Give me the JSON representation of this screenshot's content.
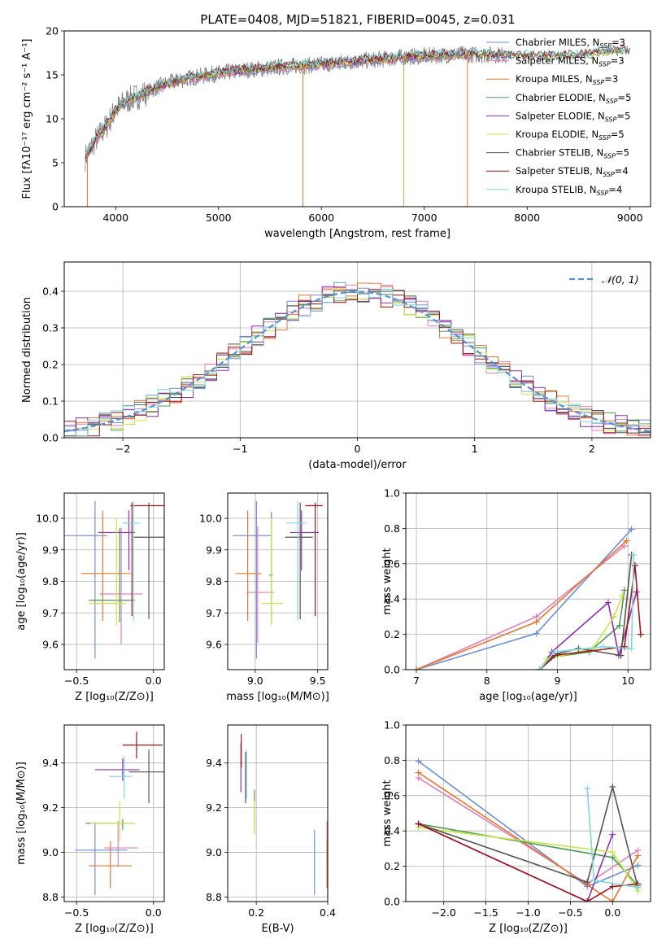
{
  "figure": {
    "title": "PLATE=0408, MJD=51821, FIBERID=0045, z=0.031"
  },
  "colors": {
    "Chabrier MILES": "#6a8fd8",
    "Salpeter MILES": "#e37fb8",
    "Kroupa MILES": "#e8772e",
    "Chabrier ELODIE": "#4d9c52",
    "Salpeter ELODIE": "#8e2db5",
    "Kroupa ELODIE": "#c9e64d",
    "Chabrier STELIB": "#555555",
    "Salpeter STELIB": "#a01616",
    "Kroupa STELIB": "#7fd6e0",
    "data": "#7f7f7f",
    "normal_curve": "#5b8fd4"
  },
  "chart_data": [
    {
      "id": "spectrum",
      "type": "line",
      "title": "PLATE=0408, MJD=51821, FIBERID=0045, z=0.031",
      "xlabel": "wavelength [Angstrom, rest frame]",
      "ylabel": "Flux [fλ10⁻¹⁷ erg cm⁻² s⁻¹ A⁻¹]",
      "xlim": [
        3500,
        9200
      ],
      "ylim": [
        0,
        20
      ],
      "xticks": [
        "4000",
        "5000",
        "6000",
        "7000",
        "8000",
        "9000"
      ],
      "yticks": [
        "0",
        "5",
        "10",
        "15",
        "20"
      ],
      "legend_position": "upper-right",
      "legend": [
        {
          "label": "Chabrier MILES, N",
          "sub": "SSP",
          "tail": "=3"
        },
        {
          "label": "Salpeter MILES, N",
          "sub": "SSP",
          "tail": "=3"
        },
        {
          "label": "Kroupa MILES, N",
          "sub": "SSP",
          "tail": "=3"
        },
        {
          "label": "Chabrier ELODIE, N",
          "sub": "SSP",
          "tail": "=5"
        },
        {
          "label": "Salpeter ELODIE, N",
          "sub": "SSP",
          "tail": "=5"
        },
        {
          "label": "Kroupa ELODIE, N",
          "sub": "SSP",
          "tail": "=5"
        },
        {
          "label": "Chabrier STELIB, N",
          "sub": "SSP",
          "tail": "=5"
        },
        {
          "label": "Salpeter STELIB, N",
          "sub": "SSP",
          "tail": "=4"
        },
        {
          "label": "Kroupa STELIB, N",
          "sub": "SSP",
          "tail": "=4"
        }
      ],
      "continuum": {
        "x": [
          3700,
          3800,
          3900,
          4000,
          4100,
          4200,
          4300,
          4400,
          4500,
          4700,
          4900,
          5100,
          5300,
          5500,
          5700,
          5900,
          6100,
          6300,
          6500,
          6700,
          6900,
          7100,
          7300,
          7500,
          7700,
          7900,
          8100,
          8300,
          8500,
          8700,
          8900,
          9100
        ],
        "y": [
          5.5,
          7.5,
          9.0,
          11.0,
          12.0,
          12.5,
          13.0,
          13.6,
          14.0,
          14.6,
          15.0,
          15.3,
          15.6,
          15.8,
          16.0,
          16.1,
          16.3,
          16.5,
          16.7,
          16.9,
          17.1,
          17.2,
          17.3,
          17.3,
          17.3,
          17.2,
          17.1,
          17.1,
          17.2,
          17.5,
          17.7,
          17.8
        ]
      },
      "spikes_data": [
        {
          "x": 3725,
          "y": 0
        },
        {
          "x": 5820,
          "y": 0
        },
        {
          "x": 6800,
          "y": 0
        },
        {
          "x": 7420,
          "y": 0
        }
      ]
    },
    {
      "id": "residuals",
      "type": "histogram",
      "xlabel": "(data-model)/error",
      "ylabel": "Normed distribution",
      "xlim": [
        -2.5,
        2.5
      ],
      "ylim": [
        0,
        0.48
      ],
      "xticks": [
        "−2",
        "−1",
        "0",
        "1",
        "2"
      ],
      "yticks": [
        "0.0",
        "0.1",
        "0.2",
        "0.3",
        "0.4"
      ],
      "legend_position": "upper-right",
      "legend": [
        "𝒩(0, 1)"
      ],
      "bin_width": 0.1
    },
    {
      "id": "age-vs-Z",
      "type": "errorbar",
      "xlabel": "Z [log₁₀(Z/Z⊙)]",
      "ylabel": "age  [log₁₀(age/yr)]",
      "xlim": [
        -0.58,
        0.07
      ],
      "ylim": [
        9.52,
        10.08
      ],
      "xticks": [
        "−0.5",
        "0.0"
      ],
      "yticks": [
        "9.6",
        "9.7",
        "9.8",
        "9.9",
        "10.0"
      ],
      "series": [
        {
          "name": "Chabrier MILES",
          "x": -0.38,
          "xerr": [
            0.34,
            0.08
          ],
          "y": 9.945,
          "yerr": [
            0.39,
            0.11
          ]
        },
        {
          "name": "Salpeter MILES",
          "x": -0.21,
          "xerr": [
            0.14,
            0.14
          ],
          "y": 9.76,
          "yerr": [
            0.16,
            0.21
          ]
        },
        {
          "name": "Kroupa MILES",
          "x": -0.33,
          "xerr": [
            0.14,
            0.18
          ],
          "y": 9.825,
          "yerr": [
            0.15,
            0.2
          ]
        },
        {
          "name": "Chabrier ELODIE",
          "x": -0.22,
          "xerr": [
            0.2,
            0.1
          ],
          "y": 9.74,
          "yerr": [
            0.07,
            0.23
          ]
        },
        {
          "name": "Salpeter ELODIE",
          "x": -0.16,
          "xerr": [
            0.2,
            0.04
          ],
          "y": 9.955,
          "yerr": [
            0.12,
            0.07
          ]
        },
        {
          "name": "Kroupa ELODIE",
          "x": -0.24,
          "xerr": [
            0.18,
            0.06
          ],
          "y": 9.73,
          "yerr": [
            0.07,
            0.27
          ]
        },
        {
          "name": "Chabrier STELIB",
          "x": -0.03,
          "xerr": [
            0.1,
            0.11
          ],
          "y": 9.94,
          "yerr": [
            0.26,
            0.11
          ]
        },
        {
          "name": "Salpeter STELIB",
          "x": -0.14,
          "xerr": [
            0.01,
            0.21
          ],
          "y": 10.04,
          "yerr": [
            0.35,
            0.01
          ]
        },
        {
          "name": "Kroupa STELIB",
          "x": -0.13,
          "xerr": [
            0.07,
            0.04
          ],
          "y": 9.985,
          "yerr": [
            0.31,
            0.07
          ]
        }
      ]
    },
    {
      "id": "age-vs-mass",
      "type": "errorbar",
      "xlabel": "mass [log₁₀(M/M⊙)]",
      "xlim": [
        8.78,
        9.58
      ],
      "ylim": [
        9.52,
        10.08
      ],
      "xticks": [
        "9.0",
        "9.5"
      ],
      "yticks": [
        "9.6",
        "9.7",
        "9.8",
        "9.9",
        "10.0"
      ],
      "series": [
        {
          "name": "Chabrier MILES",
          "x": 9.01,
          "xerr": [
            0.19,
            0.12
          ],
          "y": 9.945,
          "yerr": [
            0.39,
            0.11
          ]
        },
        {
          "name": "Salpeter MILES",
          "x": 9.02,
          "xerr": [
            0.09,
            0.13
          ],
          "y": 9.765,
          "yerr": [
            0.16,
            0.21
          ]
        },
        {
          "name": "Kroupa MILES",
          "x": 8.94,
          "xerr": [
            0.1,
            0.11
          ],
          "y": 9.825,
          "yerr": [
            0.15,
            0.2
          ]
        },
        {
          "name": "Chabrier ELODIE",
          "x": 9.13,
          "xerr": [
            0.02,
            0.01
          ],
          "y": 9.82,
          "yerr": [
            0.15,
            0.2
          ]
        },
        {
          "name": "Salpeter ELODIE",
          "x": 9.37,
          "xerr": [
            0.09,
            0.14
          ],
          "y": 9.955,
          "yerr": [
            0.12,
            0.07
          ]
        },
        {
          "name": "Kroupa ELODIE",
          "x": 9.13,
          "xerr": [
            0.08,
            0.09
          ],
          "y": 9.73,
          "yerr": [
            0.07,
            0.27
          ]
        },
        {
          "name": "Chabrier STELIB",
          "x": 9.36,
          "xerr": [
            0.12,
            0.1
          ],
          "y": 9.94,
          "yerr": [
            0.26,
            0.11
          ]
        },
        {
          "name": "Salpeter STELIB",
          "x": 9.48,
          "xerr": [
            0.08,
            0.06
          ],
          "y": 10.04,
          "yerr": [
            0.35,
            0.01
          ]
        },
        {
          "name": "Kroupa STELIB",
          "x": 9.34,
          "xerr": [
            0.09,
            0.07
          ],
          "y": 9.985,
          "yerr": [
            0.31,
            0.07
          ]
        }
      ]
    },
    {
      "id": "mass-weight-vs-age",
      "type": "line",
      "xlabel": "age  [log₁₀(age/yr)]",
      "ylabel": "mass weight",
      "xlim": [
        6.85,
        10.32
      ],
      "ylim": [
        0,
        1.0
      ],
      "xticks": [
        "7",
        "8",
        "9",
        "10"
      ],
      "yticks": [
        "0.0",
        "0.2",
        "0.4",
        "0.6",
        "0.8",
        "1.0"
      ],
      "series": [
        {
          "name": "Chabrier MILES",
          "x": [
            7.0,
            8.7,
            10.05
          ],
          "y": [
            0.0,
            0.205,
            0.795
          ]
        },
        {
          "name": "Salpeter MILES",
          "x": [
            7.0,
            8.7,
            9.95
          ],
          "y": [
            0.0,
            0.3,
            0.7
          ]
        },
        {
          "name": "Kroupa MILES",
          "x": [
            7.0,
            8.7,
            9.98
          ],
          "y": [
            0.0,
            0.27,
            0.73
          ]
        },
        {
          "name": "Chabrier ELODIE",
          "x": [
            8.75,
            8.92,
            9.45,
            9.88,
            9.95
          ],
          "y": [
            0.0,
            0.07,
            0.1,
            0.25,
            0.45
          ]
        },
        {
          "name": "Salpeter ELODIE",
          "x": [
            8.75,
            8.92,
            9.72,
            9.87,
            10.12
          ],
          "y": [
            0.0,
            0.1,
            0.38,
            0.08,
            0.44
          ]
        },
        {
          "name": "Kroupa ELODIE",
          "x": [
            8.75,
            8.85,
            9.5,
            9.8,
            9.92
          ],
          "y": [
            0.0,
            0.06,
            0.12,
            0.3,
            0.42
          ]
        },
        {
          "name": "Chabrier STELIB",
          "x": [
            8.75,
            9.0,
            9.3,
            9.9,
            10.05
          ],
          "y": [
            0.0,
            0.09,
            0.12,
            0.08,
            0.65
          ]
        },
        {
          "name": "Salpeter STELIB",
          "x": [
            8.75,
            8.95,
            9.95,
            10.1,
            10.18
          ],
          "y": [
            0.0,
            0.08,
            0.13,
            0.59,
            0.2
          ]
        },
        {
          "name": "Kroupa STELIB",
          "x": [
            8.75,
            8.95,
            9.65,
            10.05,
            10.08
          ],
          "y": [
            0.0,
            0.1,
            0.13,
            0.12,
            0.65
          ]
        }
      ]
    },
    {
      "id": "mass-vs-Z",
      "type": "errorbar",
      "xlabel": "Z [log₁₀(Z/Z⊙)]",
      "ylabel": "mass [log₁₀(M/M⊙)]",
      "xlim": [
        -0.58,
        0.07
      ],
      "ylim": [
        8.78,
        9.57
      ],
      "xticks": [
        "−0.5",
        "0.0"
      ],
      "yticks": [
        "8.8",
        "9.0",
        "9.2",
        "9.4"
      ],
      "series": [
        {
          "name": "Chabrier MILES",
          "x": -0.38,
          "xerr": [
            0.13,
            0.21
          ],
          "y": 9.01,
          "yerr": [
            0.2,
            0.12
          ]
        },
        {
          "name": "Salpeter MILES",
          "x": -0.23,
          "xerr": [
            0.09,
            0.13
          ],
          "y": 9.02,
          "yerr": [
            0.08,
            0.12
          ]
        },
        {
          "name": "Kroupa MILES",
          "x": -0.28,
          "xerr": [
            0.14,
            0.14
          ],
          "y": 8.94,
          "yerr": [
            0.1,
            0.11
          ]
        },
        {
          "name": "Chabrier ELODIE",
          "x": -0.2,
          "xerr": [
            0.24,
            0.02
          ],
          "y": 9.13,
          "yerr": [
            0.03,
            0.02
          ]
        },
        {
          "name": "Salpeter ELODIE",
          "x": -0.2,
          "xerr": [
            0.18,
            0.11
          ],
          "y": 9.37,
          "yerr": [
            0.05,
            0.05
          ]
        },
        {
          "name": "Kroupa ELODIE",
          "x": -0.22,
          "xerr": [
            0.19,
            0.1
          ],
          "y": 9.13,
          "yerr": [
            0.08,
            0.1
          ]
        },
        {
          "name": "Chabrier STELIB",
          "x": -0.03,
          "xerr": [
            0.13,
            0.11
          ],
          "y": 9.36,
          "yerr": [
            0.14,
            0.1
          ]
        },
        {
          "name": "Salpeter STELIB",
          "x": -0.11,
          "xerr": [
            0.09,
            0.17
          ],
          "y": 9.48,
          "yerr": [
            0.06,
            0.06
          ]
        },
        {
          "name": "Kroupa STELIB",
          "x": -0.19,
          "xerr": [
            0.1,
            0.05
          ],
          "y": 9.34,
          "yerr": [
            0.1,
            0.09
          ]
        }
      ]
    },
    {
      "id": "mass-vs-EBV",
      "type": "errorbar",
      "xlabel": "E(B-V)",
      "xlim": [
        0.12,
        0.4
      ],
      "ylim": [
        8.78,
        9.57
      ],
      "xticks": [
        "0.2",
        "0.4"
      ],
      "yticks": [
        "8.8",
        "9.0",
        "9.2",
        "9.4"
      ],
      "series": [
        {
          "name": "Chabrier MILES",
          "x": 0.363,
          "y": 9.01,
          "yerr": [
            0.2,
            0.09
          ]
        },
        {
          "name": "Salpeter MILES",
          "x": 0.398,
          "y": 9.02,
          "yerr": [
            0.08,
            0.12
          ]
        },
        {
          "name": "Kroupa MILES",
          "x": 0.398,
          "y": 8.94,
          "yerr": [
            0.1,
            0.12
          ]
        },
        {
          "name": "Chabrier ELODIE",
          "x": 0.195,
          "y": 9.2,
          "yerr": [
            0.1,
            0.08
          ]
        },
        {
          "name": "Salpeter ELODIE",
          "x": 0.157,
          "y": 9.37,
          "yerr": [
            0.1,
            0.12
          ]
        },
        {
          "name": "Kroupa ELODIE",
          "x": 0.195,
          "y": 9.13,
          "yerr": [
            0.05,
            0.1
          ]
        },
        {
          "name": "Chabrier STELIB",
          "x": 0.17,
          "y": 9.32,
          "yerr": [
            0.1,
            0.13
          ]
        },
        {
          "name": "Salpeter STELIB",
          "x": 0.158,
          "y": 9.43,
          "yerr": [
            0.05,
            0.1
          ]
        },
        {
          "name": "Kroupa STELIB",
          "x": 0.173,
          "y": 9.34,
          "yerr": [
            0.1,
            0.12
          ]
        }
      ]
    },
    {
      "id": "mass-weight-vs-Z",
      "type": "line",
      "xlabel": "Z [log₁₀(Z/Z⊙)]",
      "ylabel": "mass weight",
      "xlim": [
        -2.45,
        0.45
      ],
      "ylim": [
        0,
        1.0
      ],
      "xticks": [
        "−2.0",
        "−1.5",
        "−1.0",
        "−0.5",
        "0.0"
      ],
      "yticks": [
        "0.0",
        "0.2",
        "0.4",
        "0.6",
        "0.8",
        "1.0"
      ],
      "series": [
        {
          "name": "Chabrier MILES",
          "x": [
            -2.3,
            -0.3,
            0.3
          ],
          "y": [
            0.795,
            0.085,
            0.205
          ]
        },
        {
          "name": "Salpeter MILES",
          "x": [
            -2.3,
            -0.3,
            0.3
          ],
          "y": [
            0.7,
            0.1,
            0.29
          ]
        },
        {
          "name": "Kroupa MILES",
          "x": [
            -2.3,
            -0.3,
            0.0,
            0.3
          ],
          "y": [
            0.73,
            0.095,
            0.0,
            0.26
          ]
        },
        {
          "name": "Chabrier ELODIE",
          "x": [
            -2.3,
            0.0,
            0.3
          ],
          "y": [
            0.44,
            0.25,
            0.09
          ]
        },
        {
          "name": "Salpeter ELODIE",
          "x": [
            -2.3,
            -0.3,
            0.0
          ],
          "y": [
            0.44,
            0.0,
            0.38
          ]
        },
        {
          "name": "Kroupa ELODIE",
          "x": [
            -2.3,
            0.0,
            0.3
          ],
          "y": [
            0.42,
            0.28,
            0.06
          ]
        },
        {
          "name": "Chabrier STELIB",
          "x": [
            -2.3,
            -0.3,
            0.0,
            0.3
          ],
          "y": [
            0.44,
            0.11,
            0.65,
            0.08
          ]
        },
        {
          "name": "Salpeter STELIB",
          "x": [
            -2.3,
            -0.3,
            0.0,
            0.3
          ],
          "y": [
            0.44,
            0.0,
            0.085,
            0.1
          ]
        },
        {
          "name": "Kroupa STELIB",
          "x": [
            -0.3,
            -0.22,
            0.3
          ],
          "y": [
            0.64,
            0.12,
            0.08
          ]
        }
      ]
    }
  ]
}
